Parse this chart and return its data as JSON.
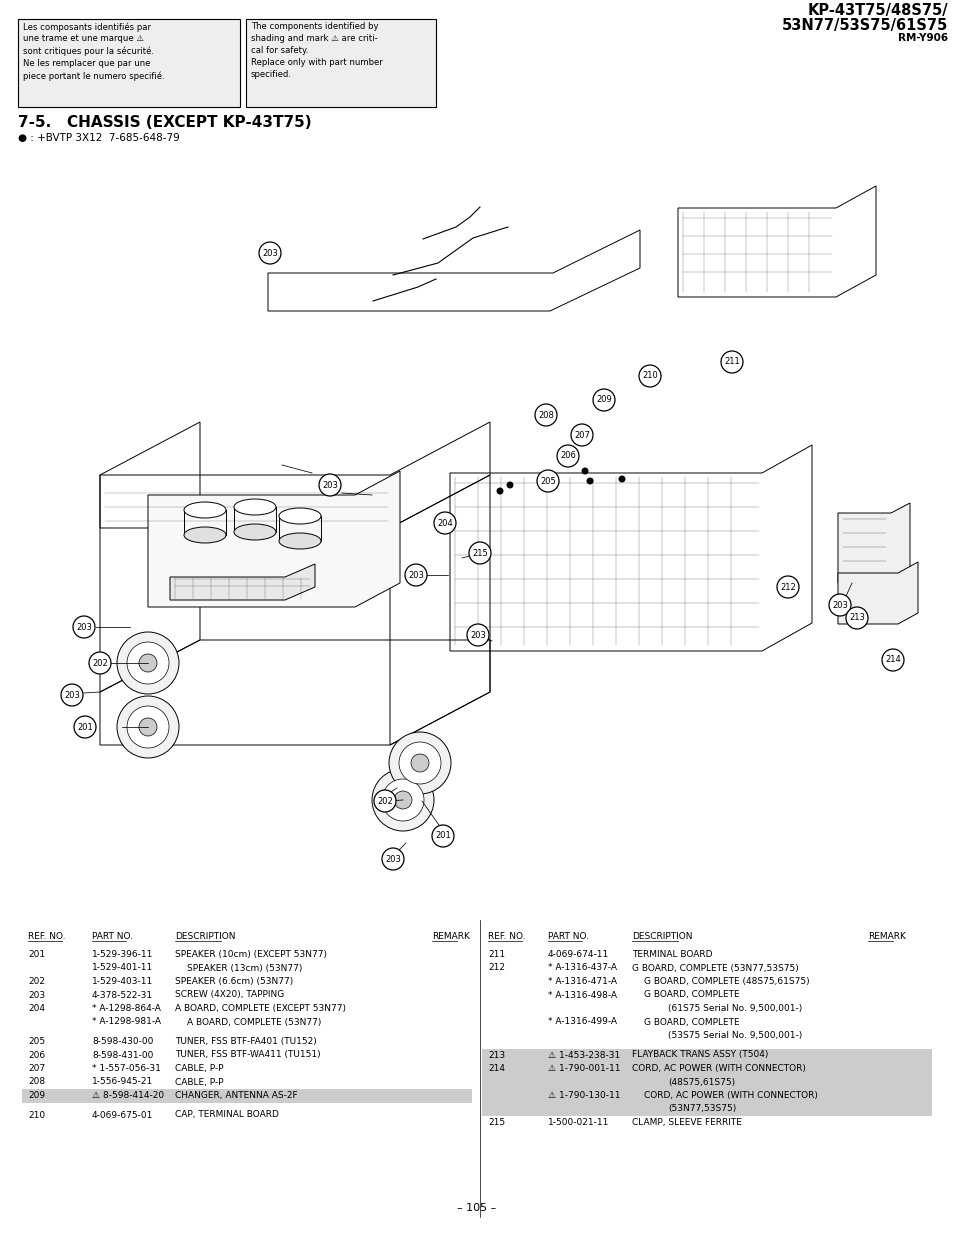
{
  "title_model_line1": "KP-43T75/48S75/",
  "title_model_line2": "53N77/53S75/61S75",
  "title_model_sub": "RM-Y906",
  "section_title": "7-5.   CHASSIS (EXCEPT KP-43T75)",
  "bullet_text": "● : +BVTP 3X12  7-685-648-79",
  "french_text": "Les composants identifiés par\nune trame et une marque ⚠\nsont critiques pour la sécurité.\nNe les remplacer que par une\npiece portant le numero specifié.",
  "english_text": "The components identified by\nshading and mark ⚠ are criti-\ncal for safety.\nReplace only with part number\nspecified.",
  "page_number": "– 105 –",
  "parts_left": [
    {
      "ref": "201",
      "part": "1-529-396-11",
      "desc": "SPEAKER (10cm) (EXCEPT 53N77)",
      "indent": 0,
      "hl": false,
      "star": false,
      "warn": false
    },
    {
      "ref": "",
      "part": "1-529-401-11",
      "desc": "SPEAKER (13cm) (53N77)",
      "indent": 1,
      "hl": false,
      "star": false,
      "warn": false
    },
    {
      "ref": "202",
      "part": "1-529-403-11",
      "desc": "SPEAKER (6.6cm) (53N77)",
      "indent": 0,
      "hl": false,
      "star": false,
      "warn": false
    },
    {
      "ref": "203",
      "part": "4-378-522-31",
      "desc": "SCREW (4X20), TAPPING",
      "indent": 0,
      "hl": false,
      "star": false,
      "warn": false
    },
    {
      "ref": "204",
      "part": "A-1298-864-A",
      "desc": "A BOARD, COMPLETE (EXCEPT 53N77)",
      "indent": 0,
      "hl": false,
      "star": true,
      "warn": false
    },
    {
      "ref": "",
      "part": "A-1298-981-A",
      "desc": "A BOARD, COMPLETE (53N77)",
      "indent": 1,
      "hl": false,
      "star": true,
      "warn": false
    },
    {
      "ref": "BREAK",
      "part": "",
      "desc": "",
      "indent": 0,
      "hl": false,
      "star": false,
      "warn": false
    },
    {
      "ref": "205",
      "part": "8-598-430-00",
      "desc": "TUNER, FSS BTF-FA401 (TU152)",
      "indent": 0,
      "hl": false,
      "star": false,
      "warn": false
    },
    {
      "ref": "206",
      "part": "8-598-431-00",
      "desc": "TUNER, FSS BTF-WA411 (TU151)",
      "indent": 0,
      "hl": false,
      "star": false,
      "warn": false
    },
    {
      "ref": "207",
      "part": "1-557-056-31",
      "desc": "CABLE, P-P",
      "indent": 0,
      "hl": false,
      "star": true,
      "warn": false
    },
    {
      "ref": "208",
      "part": "1-556-945-21",
      "desc": "CABLE, P-P",
      "indent": 0,
      "hl": false,
      "star": false,
      "warn": false
    },
    {
      "ref": "209",
      "part": "8-598-414-20",
      "desc": "CHANGER, ANTENNA AS-2F",
      "indent": 0,
      "hl": true,
      "star": false,
      "warn": true
    },
    {
      "ref": "BREAK",
      "part": "",
      "desc": "",
      "indent": 0,
      "hl": false,
      "star": false,
      "warn": false
    },
    {
      "ref": "210",
      "part": "4-069-675-01",
      "desc": "CAP, TERMINAL BOARD",
      "indent": 0,
      "hl": false,
      "star": false,
      "warn": false
    }
  ],
  "parts_right": [
    {
      "ref": "211",
      "part": "4-069-674-11",
      "desc": "TERMINAL BOARD",
      "indent": 0,
      "hl": false,
      "star": false,
      "warn": false
    },
    {
      "ref": "212",
      "part": "A-1316-437-A",
      "desc": "G BOARD, COMPLETE (53N77,53S75)",
      "indent": 0,
      "hl": false,
      "star": true,
      "warn": false
    },
    {
      "ref": "",
      "part": "A-1316-471-A",
      "desc": "G BOARD, COMPLETE (48S75,61S75)",
      "indent": 1,
      "hl": false,
      "star": true,
      "warn": false
    },
    {
      "ref": "",
      "part": "A-1316-498-A",
      "desc": "G BOARD, COMPLETE",
      "indent": 1,
      "hl": false,
      "star": true,
      "warn": false
    },
    {
      "ref": "",
      "part": "",
      "desc": "(61S75 Serial No. 9,500,001-)",
      "indent": 3,
      "hl": false,
      "star": false,
      "warn": false
    },
    {
      "ref": "",
      "part": "A-1316-499-A",
      "desc": "G BOARD, COMPLETE",
      "indent": 1,
      "hl": false,
      "star": true,
      "warn": false
    },
    {
      "ref": "",
      "part": "",
      "desc": "(53S75 Serial No. 9,500,001-)",
      "indent": 3,
      "hl": false,
      "star": false,
      "warn": false
    },
    {
      "ref": "BREAK",
      "part": "",
      "desc": "",
      "indent": 0,
      "hl": false,
      "star": false,
      "warn": false
    },
    {
      "ref": "213",
      "part": "1-453-238-31",
      "desc": "FLAYBACK TRANS ASSY (T504)",
      "indent": 0,
      "hl": true,
      "star": false,
      "warn": true
    },
    {
      "ref": "214",
      "part": "1-790-001-11",
      "desc": "CORD, AC POWER (WITH CONNECTOR)",
      "indent": 0,
      "hl": true,
      "star": false,
      "warn": true
    },
    {
      "ref": "",
      "part": "",
      "desc": "(48S75,61S75)",
      "indent": 3,
      "hl": true,
      "star": false,
      "warn": false
    },
    {
      "ref": "",
      "part": "1-790-130-11",
      "desc": "CORD, AC POWER (WITH CONNECTOR)",
      "indent": 1,
      "hl": true,
      "star": false,
      "warn": true
    },
    {
      "ref": "",
      "part": "",
      "desc": "(53N77,53S75)",
      "indent": 3,
      "hl": true,
      "star": false,
      "warn": false
    },
    {
      "ref": "215",
      "part": "1-500-021-11",
      "desc": "CLAMP, SLEEVE FERRITE",
      "indent": 0,
      "hl": false,
      "star": false,
      "warn": false
    }
  ]
}
